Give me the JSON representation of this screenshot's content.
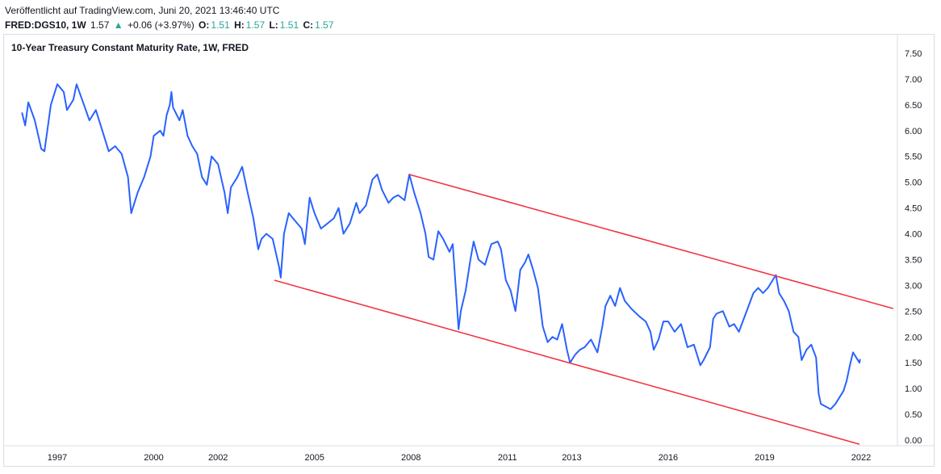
{
  "header": {
    "published": "Veröffentlicht auf TradingView.com, Juni 20, 2021 13:46:40 UTC",
    "ticker": "FRED:DGS10, 1W",
    "last": "1.57",
    "change_arrow": "▲",
    "change": "+0.06 (+3.97%)",
    "o_label": "O:",
    "o_value": "1.51",
    "h_label": "H:",
    "h_value": "1.57",
    "l_label": "L:",
    "l_value": "1.51",
    "c_label": "C:",
    "c_value": "1.57"
  },
  "chart_data": {
    "type": "line",
    "title": "10-Year Treasury Constant Maturity Rate, 1W, FRED",
    "ylim": [
      -0.1,
      7.75
    ],
    "xlim": [
      1995.3,
      2022.9
    ],
    "y_ticks": [
      "7.50",
      "7.00",
      "6.50",
      "6.00",
      "5.50",
      "5.00",
      "4.50",
      "4.00",
      "3.50",
      "3.00",
      "2.50",
      "2.00",
      "1.50",
      "1.00",
      "0.50",
      "0.00"
    ],
    "x_ticks": [
      {
        "label": "1997",
        "x": 1996.5
      },
      {
        "label": "2000",
        "x": 1999.5
      },
      {
        "label": "2002",
        "x": 2001.5
      },
      {
        "label": "2005",
        "x": 2004.5
      },
      {
        "label": "2008",
        "x": 2007.5
      },
      {
        "label": "2011",
        "x": 2010.5
      },
      {
        "label": "2013",
        "x": 2012.5
      },
      {
        "label": "2016",
        "x": 2015.5
      },
      {
        "label": "2019",
        "x": 2018.5
      },
      {
        "label": "2022",
        "x": 2021.5
      }
    ],
    "series": [
      {
        "color": "#2962ff",
        "points": [
          [
            1995.4,
            6.35
          ],
          [
            1995.5,
            6.1
          ],
          [
            1995.6,
            6.55
          ],
          [
            1995.8,
            6.2
          ],
          [
            1996.0,
            5.65
          ],
          [
            1996.1,
            5.6
          ],
          [
            1996.3,
            6.5
          ],
          [
            1996.5,
            6.9
          ],
          [
            1996.7,
            6.75
          ],
          [
            1996.8,
            6.4
          ],
          [
            1997.0,
            6.6
          ],
          [
            1997.1,
            6.9
          ],
          [
            1997.3,
            6.55
          ],
          [
            1997.5,
            6.2
          ],
          [
            1997.7,
            6.4
          ],
          [
            1997.9,
            6.0
          ],
          [
            1998.1,
            5.6
          ],
          [
            1998.3,
            5.7
          ],
          [
            1998.5,
            5.55
          ],
          [
            1998.7,
            5.1
          ],
          [
            1998.8,
            4.4
          ],
          [
            1998.9,
            4.6
          ],
          [
            1999.0,
            4.8
          ],
          [
            1999.2,
            5.1
          ],
          [
            1999.4,
            5.5
          ],
          [
            1999.5,
            5.9
          ],
          [
            1999.7,
            6.0
          ],
          [
            1999.8,
            5.9
          ],
          [
            1999.9,
            6.3
          ],
          [
            2000.0,
            6.5
          ],
          [
            2000.05,
            6.75
          ],
          [
            2000.1,
            6.45
          ],
          [
            2000.3,
            6.2
          ],
          [
            2000.4,
            6.4
          ],
          [
            2000.55,
            5.9
          ],
          [
            2000.7,
            5.7
          ],
          [
            2000.85,
            5.55
          ],
          [
            2001.0,
            5.1
          ],
          [
            2001.15,
            4.95
          ],
          [
            2001.3,
            5.5
          ],
          [
            2001.5,
            5.35
          ],
          [
            2001.7,
            4.8
          ],
          [
            2001.8,
            4.4
          ],
          [
            2001.9,
            4.9
          ],
          [
            2002.1,
            5.1
          ],
          [
            2002.25,
            5.3
          ],
          [
            2002.4,
            4.85
          ],
          [
            2002.6,
            4.3
          ],
          [
            2002.75,
            3.7
          ],
          [
            2002.85,
            3.9
          ],
          [
            2003.0,
            4.0
          ],
          [
            2003.2,
            3.9
          ],
          [
            2003.4,
            3.35
          ],
          [
            2003.45,
            3.15
          ],
          [
            2003.55,
            4.0
          ],
          [
            2003.7,
            4.4
          ],
          [
            2003.9,
            4.25
          ],
          [
            2004.1,
            4.1
          ],
          [
            2004.2,
            3.8
          ],
          [
            2004.35,
            4.7
          ],
          [
            2004.5,
            4.4
          ],
          [
            2004.7,
            4.1
          ],
          [
            2004.9,
            4.2
          ],
          [
            2005.1,
            4.3
          ],
          [
            2005.25,
            4.5
          ],
          [
            2005.4,
            4.0
          ],
          [
            2005.6,
            4.2
          ],
          [
            2005.8,
            4.6
          ],
          [
            2005.9,
            4.4
          ],
          [
            2006.1,
            4.55
          ],
          [
            2006.3,
            5.05
          ],
          [
            2006.45,
            5.15
          ],
          [
            2006.6,
            4.85
          ],
          [
            2006.8,
            4.6
          ],
          [
            2006.95,
            4.7
          ],
          [
            2007.1,
            4.75
          ],
          [
            2007.3,
            4.65
          ],
          [
            2007.45,
            5.15
          ],
          [
            2007.6,
            4.8
          ],
          [
            2007.8,
            4.4
          ],
          [
            2007.95,
            4.0
          ],
          [
            2008.05,
            3.55
          ],
          [
            2008.2,
            3.5
          ],
          [
            2008.35,
            4.05
          ],
          [
            2008.5,
            3.9
          ],
          [
            2008.7,
            3.65
          ],
          [
            2008.8,
            3.8
          ],
          [
            2008.9,
            2.9
          ],
          [
            2008.98,
            2.15
          ],
          [
            2009.05,
            2.5
          ],
          [
            2009.2,
            2.9
          ],
          [
            2009.35,
            3.5
          ],
          [
            2009.45,
            3.85
          ],
          [
            2009.6,
            3.5
          ],
          [
            2009.8,
            3.4
          ],
          [
            2010.0,
            3.8
          ],
          [
            2010.2,
            3.85
          ],
          [
            2010.3,
            3.7
          ],
          [
            2010.45,
            3.1
          ],
          [
            2010.6,
            2.9
          ],
          [
            2010.75,
            2.5
          ],
          [
            2010.9,
            3.3
          ],
          [
            2011.05,
            3.45
          ],
          [
            2011.15,
            3.6
          ],
          [
            2011.3,
            3.3
          ],
          [
            2011.45,
            2.95
          ],
          [
            2011.6,
            2.2
          ],
          [
            2011.75,
            1.9
          ],
          [
            2011.9,
            2.0
          ],
          [
            2012.05,
            1.95
          ],
          [
            2012.2,
            2.25
          ],
          [
            2012.35,
            1.75
          ],
          [
            2012.45,
            1.5
          ],
          [
            2012.6,
            1.65
          ],
          [
            2012.75,
            1.75
          ],
          [
            2012.9,
            1.8
          ],
          [
            2013.1,
            1.95
          ],
          [
            2013.3,
            1.7
          ],
          [
            2013.45,
            2.2
          ],
          [
            2013.55,
            2.6
          ],
          [
            2013.7,
            2.8
          ],
          [
            2013.85,
            2.6
          ],
          [
            2014.0,
            2.95
          ],
          [
            2014.15,
            2.7
          ],
          [
            2014.35,
            2.55
          ],
          [
            2014.6,
            2.4
          ],
          [
            2014.8,
            2.3
          ],
          [
            2014.95,
            2.1
          ],
          [
            2015.05,
            1.75
          ],
          [
            2015.2,
            1.95
          ],
          [
            2015.35,
            2.3
          ],
          [
            2015.5,
            2.3
          ],
          [
            2015.7,
            2.1
          ],
          [
            2015.9,
            2.25
          ],
          [
            2016.1,
            1.8
          ],
          [
            2016.3,
            1.85
          ],
          [
            2016.5,
            1.45
          ],
          [
            2016.6,
            1.55
          ],
          [
            2016.8,
            1.8
          ],
          [
            2016.9,
            2.35
          ],
          [
            2017.0,
            2.45
          ],
          [
            2017.2,
            2.5
          ],
          [
            2017.4,
            2.2
          ],
          [
            2017.55,
            2.25
          ],
          [
            2017.7,
            2.1
          ],
          [
            2017.85,
            2.35
          ],
          [
            2018.0,
            2.6
          ],
          [
            2018.15,
            2.85
          ],
          [
            2018.3,
            2.95
          ],
          [
            2018.45,
            2.85
          ],
          [
            2018.6,
            2.95
          ],
          [
            2018.75,
            3.1
          ],
          [
            2018.85,
            3.2
          ],
          [
            2018.95,
            2.85
          ],
          [
            2019.1,
            2.7
          ],
          [
            2019.25,
            2.5
          ],
          [
            2019.4,
            2.1
          ],
          [
            2019.55,
            2.0
          ],
          [
            2019.65,
            1.55
          ],
          [
            2019.8,
            1.75
          ],
          [
            2019.95,
            1.85
          ],
          [
            2020.1,
            1.6
          ],
          [
            2020.18,
            0.9
          ],
          [
            2020.25,
            0.7
          ],
          [
            2020.4,
            0.65
          ],
          [
            2020.55,
            0.6
          ],
          [
            2020.7,
            0.7
          ],
          [
            2020.85,
            0.85
          ],
          [
            2020.95,
            0.95
          ],
          [
            2021.05,
            1.15
          ],
          [
            2021.15,
            1.45
          ],
          [
            2021.25,
            1.7
          ],
          [
            2021.35,
            1.6
          ],
          [
            2021.45,
            1.5
          ],
          [
            2021.47,
            1.57
          ]
        ]
      },
      {
        "color": "#f23645",
        "points": [
          [
            2003.25,
            3.1
          ],
          [
            2021.45,
            -0.08
          ]
        ]
      },
      {
        "color": "#f23645",
        "points": [
          [
            2007.45,
            5.15
          ],
          [
            2022.5,
            2.55
          ]
        ]
      }
    ]
  }
}
